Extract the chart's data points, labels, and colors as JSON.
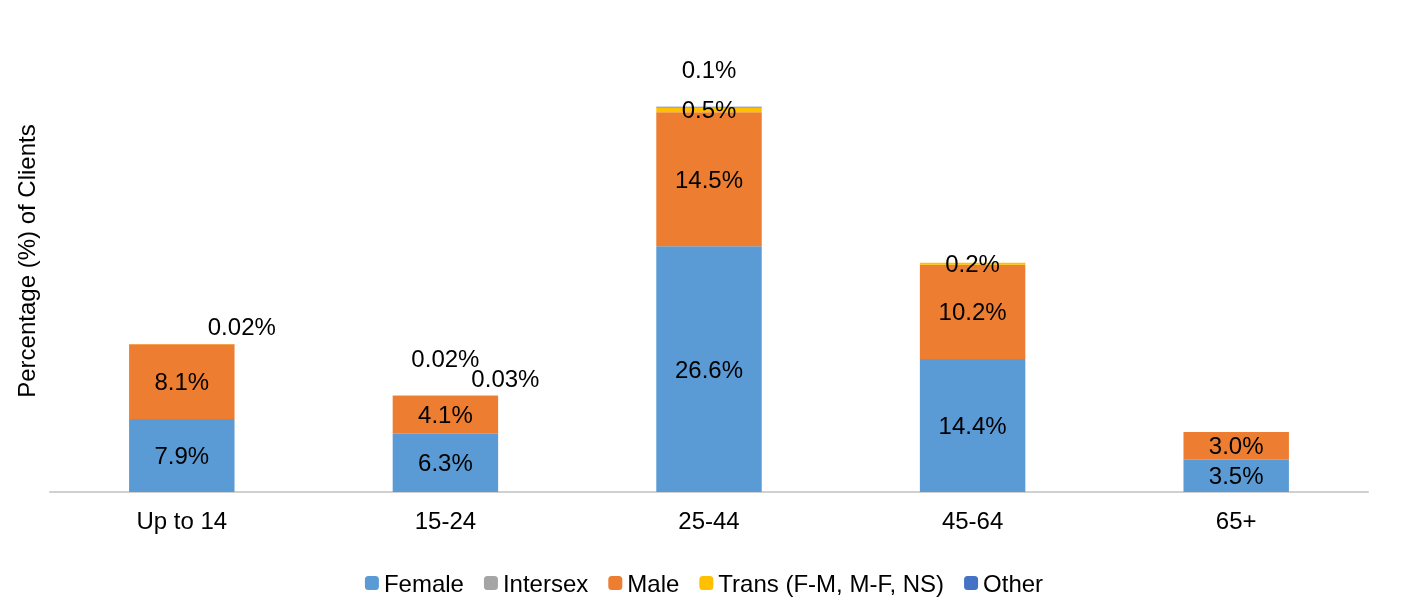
{
  "chart_data": {
    "type": "bar",
    "stacked": true,
    "ylabel": "Percentage (%) of Clients",
    "categories": [
      "Up to 14",
      "15-24",
      "25-44",
      "45-64",
      "65+"
    ],
    "legend": "bottom",
    "grid": false,
    "tick_labels": "x",
    "series": [
      {
        "name": "Female",
        "color": "#5b9bd5",
        "values": [
          7.9,
          6.3,
          26.6,
          14.4,
          3.5
        ],
        "value_labels": [
          "7.9%",
          "6.3%",
          "26.6%",
          "14.4%",
          "3.5%"
        ]
      },
      {
        "name": "Intersex",
        "color": "#a5a5a5",
        "values": [
          null,
          null,
          null,
          null,
          null
        ],
        "value_labels": [
          null,
          null,
          null,
          null,
          null
        ]
      },
      {
        "name": "Male",
        "color": "#ed7d31",
        "values": [
          8.1,
          4.1,
          14.5,
          10.2,
          3.0
        ],
        "value_labels": [
          "8.1%",
          "4.1%",
          "14.5%",
          "10.2%",
          "3.0%"
        ]
      },
      {
        "name": "Trans (F-M, M-F, NS)",
        "color": "#ffc000",
        "values": [
          0.02,
          0.03,
          0.5,
          0.2,
          null
        ],
        "value_labels": [
          "0.02%",
          "0.03%",
          "0.5%",
          "0.2%",
          null
        ]
      },
      {
        "name": "Other",
        "color": "#4472c4",
        "values": [
          null,
          0.02,
          0.1,
          null,
          null
        ],
        "value_labels": [
          null,
          "0.02%",
          "0.1%",
          null,
          null
        ]
      }
    ]
  }
}
